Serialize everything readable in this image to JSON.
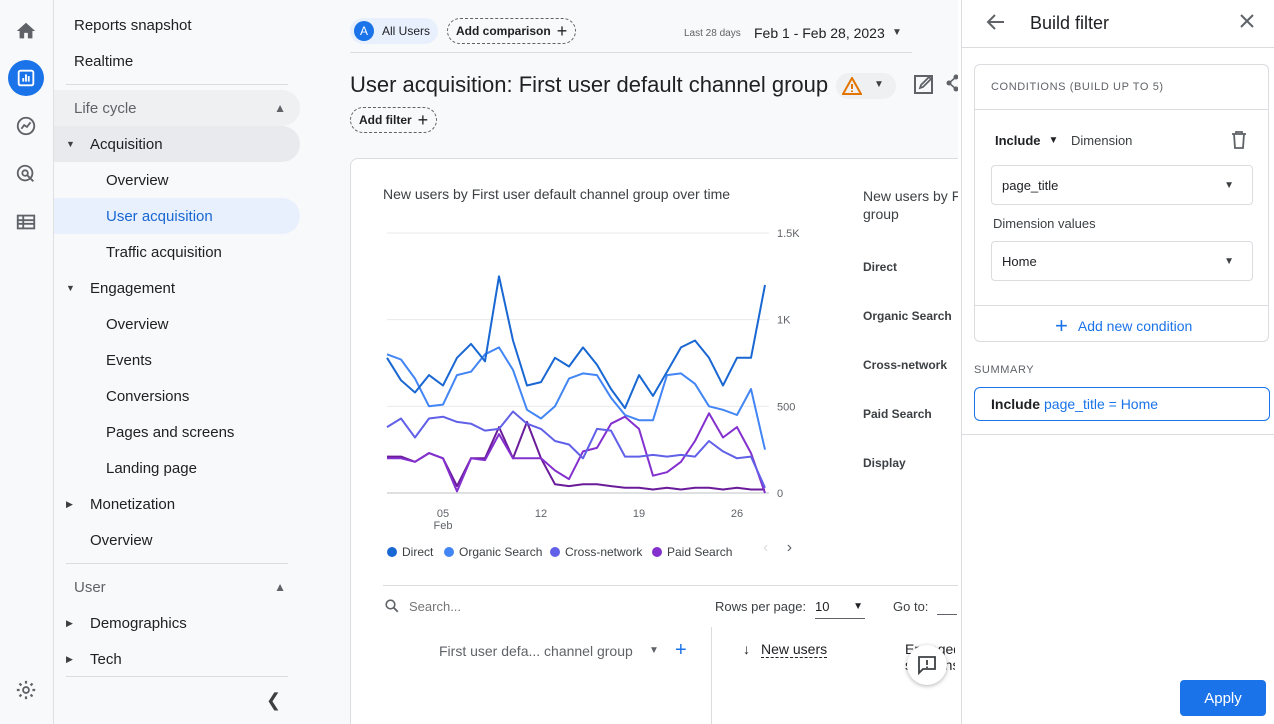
{
  "rail": {
    "icons": [
      "home-icon",
      "reports-icon",
      "explore-icon",
      "advertising-icon",
      "configure-icon",
      "settings-icon"
    ]
  },
  "nav": {
    "reports_snapshot": "Reports snapshot",
    "realtime": "Realtime",
    "lifecycle": "Life cycle",
    "acquisition": "Acquisition",
    "acq_overview": "Overview",
    "user_acquisition": "User acquisition",
    "traffic_acquisition": "Traffic acquisition",
    "engagement": "Engagement",
    "eng_overview": "Overview",
    "events": "Events",
    "conversions": "Conversions",
    "pages_and_screens": "Pages and screens",
    "landing_page": "Landing page",
    "monetization": "Monetization",
    "mon_overview": "Overview",
    "user": "User",
    "demographics": "Demographics",
    "tech": "Tech"
  },
  "header": {
    "segment_avatar": "A",
    "segment": "All Users",
    "add_comparison": "Add comparison",
    "date_caption": "Last 28 days",
    "date_range": "Feb 1 - Feb 28, 2023",
    "title": "User acquisition: First user default channel group",
    "add_filter": "Add filter"
  },
  "chart": {
    "title": "New users by First user default channel group over time",
    "bar_title_line1": "New users by First user default channel",
    "bar_title_line2": "group",
    "categories": [
      "Direct",
      "Organic Search",
      "Cross-network",
      "Paid Search",
      "Display"
    ]
  },
  "chart_data": {
    "type": "line",
    "title": "New users by First user default channel group over time",
    "x": [
      "Feb 1",
      "Feb 2",
      "Feb 3",
      "Feb 4",
      "Feb 5",
      "Feb 6",
      "Feb 7",
      "Feb 8",
      "Feb 9",
      "Feb 10",
      "Feb 11",
      "Feb 12",
      "Feb 13",
      "Feb 14",
      "Feb 15",
      "Feb 16",
      "Feb 17",
      "Feb 18",
      "Feb 19",
      "Feb 20",
      "Feb 21",
      "Feb 22",
      "Feb 23",
      "Feb 24",
      "Feb 25",
      "Feb 26",
      "Feb 27",
      "Feb 28"
    ],
    "x_ticks": [
      "05",
      "12",
      "19",
      "26"
    ],
    "x_tick_sub": "Feb",
    "y_ticks": [
      "1.5K",
      "1K",
      "500",
      "0"
    ],
    "ylim": [
      0,
      1500
    ],
    "series": [
      {
        "name": "Direct",
        "color": "#1967d2",
        "values": [
          780,
          650,
          580,
          680,
          620,
          780,
          860,
          760,
          1250,
          880,
          620,
          640,
          780,
          730,
          840,
          740,
          600,
          490,
          680,
          560,
          700,
          840,
          880,
          780,
          620,
          780,
          780,
          1200
        ]
      },
      {
        "name": "Organic Search",
        "color": "#4285f4",
        "values": [
          800,
          770,
          660,
          500,
          510,
          680,
          700,
          800,
          840,
          710,
          480,
          430,
          500,
          660,
          690,
          680,
          550,
          450,
          420,
          420,
          680,
          690,
          630,
          500,
          480,
          450,
          600,
          250
        ]
      },
      {
        "name": "Cross-network",
        "color": "#6160e8",
        "values": [
          380,
          430,
          320,
          430,
          440,
          410,
          400,
          360,
          370,
          470,
          400,
          370,
          300,
          280,
          200,
          370,
          360,
          210,
          210,
          220,
          210,
          220,
          210,
          300,
          240,
          200,
          210,
          30
        ]
      },
      {
        "name": "Paid Search",
        "color": "#8430ce",
        "values": [
          200,
          200,
          180,
          230,
          200,
          10,
          200,
          190,
          340,
          200,
          200,
          200,
          130,
          80,
          240,
          260,
          400,
          440,
          370,
          100,
          120,
          180,
          300,
          460,
          320,
          380,
          230,
          0
        ]
      },
      {
        "name": "Display",
        "color": "#6a1b9a",
        "values": [
          210,
          210,
          180,
          230,
          200,
          40,
          200,
          200,
          380,
          200,
          410,
          200,
          50,
          40,
          50,
          50,
          40,
          30,
          30,
          20,
          30,
          20,
          30,
          30,
          20,
          30,
          20,
          20
        ]
      }
    ],
    "legend_position": "bottom",
    "grid": true
  },
  "table": {
    "search_placeholder": "Search...",
    "rows_per_page_label": "Rows per page:",
    "rows_per_page_value": "10",
    "goto_label": "Go to:",
    "dim_col": "First user defa... channel group",
    "new_users_col": "New users",
    "engaged_col": "Engaged sessions"
  },
  "panel": {
    "title": "Build filter",
    "conditions_header": "CONDITIONS (BUILD UP TO 5)",
    "include": "Include",
    "dimension_label": "Dimension",
    "dimension_value": "page_title",
    "dimension_values_label": "Dimension values",
    "dimension_values_value": "Home",
    "add_new_condition": "Add new condition",
    "summary_label": "SUMMARY",
    "summary_keyword": "Include",
    "summary_expr": "page_title = Home",
    "apply": "Apply"
  }
}
